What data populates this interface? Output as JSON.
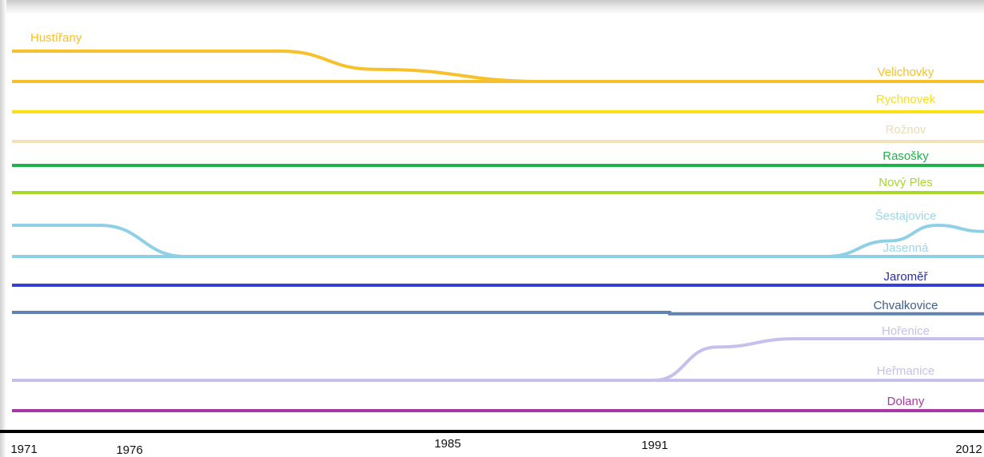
{
  "chart_data": {
    "type": "line",
    "x_ticks": [
      {
        "value": 1971,
        "label": "1971"
      },
      {
        "value": 1976,
        "label": "1976"
      },
      {
        "value": 1985,
        "label": "1985"
      },
      {
        "value": 1991,
        "label": "1991"
      },
      {
        "value": 2012,
        "label": "2012"
      }
    ],
    "xlim": [
      1971,
      2012
    ],
    "grid": false,
    "legend": "inline-labels-right",
    "series": [
      {
        "name": "Hustířany",
        "color": "#f6c12a",
        "label_color": "#f6c12a",
        "label_pos": "left",
        "path": [
          [
            1971,
            1
          ],
          [
            1980,
            1
          ],
          [
            1983,
            1.6
          ],
          [
            1988,
            2
          ]
        ]
      },
      {
        "name": "Velichovky",
        "color": "#f6c12a",
        "label_color": "#f6c12a",
        "path": [
          [
            1971,
            2
          ],
          [
            2012,
            2
          ]
        ]
      },
      {
        "name": "Rychnovek",
        "color": "#fde013",
        "label_color": "#fde013",
        "path": [
          [
            1971,
            3
          ],
          [
            2012,
            3
          ]
        ]
      },
      {
        "name": "Rožnov",
        "color": "#f2e2b8",
        "label_color": "#efdcb0",
        "path": [
          [
            1971,
            4
          ],
          [
            2012,
            4
          ]
        ]
      },
      {
        "name": "Rasošky",
        "color": "#20b24a",
        "label_color": "#20b24a",
        "path": [
          [
            1971,
            5
          ],
          [
            2012,
            5
          ]
        ]
      },
      {
        "name": "Nový Ples",
        "color": "#a8d82a",
        "label_color": "#a8d82a",
        "path": [
          [
            1971,
            6
          ],
          [
            2012,
            6
          ]
        ]
      },
      {
        "name": "Šestajovice",
        "color": "#8fd0e6",
        "label_color": "#9fd6ea",
        "path": [
          [
            1971,
            7
          ],
          [
            1974,
            7
          ],
          [
            1977,
            8
          ],
          [
            2002,
            8
          ],
          [
            2006,
            7.5
          ],
          [
            2009,
            7
          ],
          [
            2012,
            7.2
          ]
        ]
      },
      {
        "name": "Jasenná",
        "color": "#8fd0e6",
        "label_color": "#9fd6ea",
        "path": [
          [
            1971,
            8
          ],
          [
            2012,
            8
          ]
        ]
      },
      {
        "name": "Jaroměř",
        "color": "#3540d6",
        "label_color": "#2b2fa8",
        "path": [
          [
            1971,
            9
          ],
          [
            2012,
            9
          ]
        ]
      },
      {
        "name": "Chvalkovice",
        "color": "#5f82b2",
        "label_color": "#3e5e8a",
        "path": [
          [
            1971,
            10
          ],
          [
            1992,
            10
          ],
          [
            1992,
            10.05
          ],
          [
            2012,
            10.05
          ]
        ]
      },
      {
        "name": "Hořenice",
        "color": "#c5c0ec",
        "label_color": "#c5c0ec",
        "path": [
          [
            1991,
            12
          ],
          [
            1995,
            11.2
          ],
          [
            2000,
            11
          ],
          [
            2012,
            11
          ]
        ]
      },
      {
        "name": "Heřmanice",
        "color": "#c5c0ec",
        "label_color": "#c5c0ec",
        "path": [
          [
            1971,
            12
          ],
          [
            2012,
            12
          ]
        ]
      },
      {
        "name": "Dolany",
        "color": "#a63aa2",
        "label_color": "#a63aa2",
        "path": [
          [
            1971,
            13
          ],
          [
            2012,
            13
          ]
        ]
      }
    ]
  }
}
